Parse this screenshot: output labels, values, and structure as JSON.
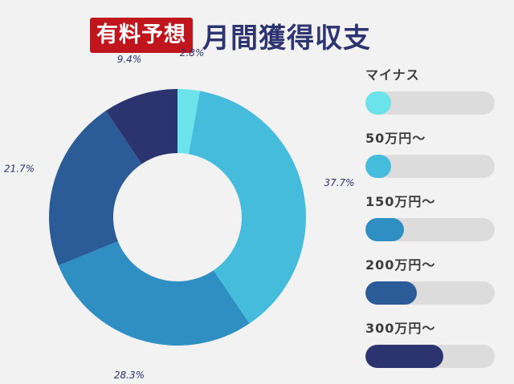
{
  "header": {
    "badge": "有料予想",
    "title": "月間獲得収支"
  },
  "legend": {
    "items": [
      {
        "label": "マイナス",
        "color": "#6ce3ea",
        "level": 0.2
      },
      {
        "label": "50万円〜",
        "color": "#45bcdc",
        "level": 0.2
      },
      {
        "label": "150万円〜",
        "color": "#2f8fc2",
        "level": 0.3
      },
      {
        "label": "200万円〜",
        "color": "#2b5c98",
        "level": 0.4
      },
      {
        "label": "300万円〜",
        "color": "#2c3470",
        "level": 0.6
      }
    ]
  },
  "chart_data": {
    "type": "pie",
    "donut": true,
    "title": "",
    "categories": [
      "マイナス",
      "50万円〜",
      "150万円〜",
      "200万円〜",
      "300万円〜"
    ],
    "values": [
      2.8,
      37.7,
      28.3,
      21.7,
      9.4
    ],
    "labels": [
      "2.8%",
      "37.7%",
      "28.3%",
      "21.7%",
      "9.4%"
    ],
    "colors": [
      "#6ce3ea",
      "#45bcdc",
      "#2f8fc2",
      "#2b5c98",
      "#2c3470"
    ],
    "start": "top",
    "direction": "clockwise"
  }
}
